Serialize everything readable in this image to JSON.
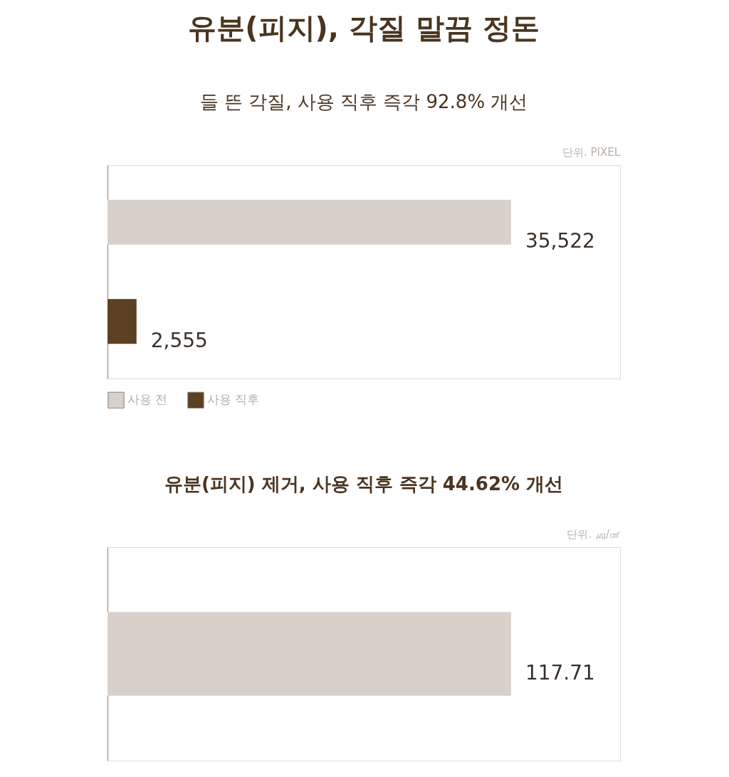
{
  "chart_data": [
    {
      "type": "bar",
      "orientation": "horizontal",
      "stacked": true,
      "title": "유분(피지), 각질 말끔 정돈",
      "subtitle": "들 뜬 각질, 사용 직후 즉각 92.8% 개선",
      "categories": [
        null,
        null
      ],
      "series": [
        {
          "name": "사용 전",
          "color": "#d9d0ca",
          "values": [
            35522,
            null
          ],
          "value_labels": [
            "35,522",
            null
          ]
        },
        {
          "name": "사용 직후",
          "color": "#5c4023",
          "values": [
            null,
            2555
          ],
          "value_labels": [
            null,
            "2,555"
          ]
        }
      ],
      "annotations": [
        "단위. PIXEL"
      ],
      "legend": "bottom left",
      "tick_labels": false
    },
    {
      "type": "bar",
      "orientation": "horizontal",
      "title": "유분(피지) 제거, 사용 직후 즉각 44.62% 개선",
      "categories": [
        null
      ],
      "series": [
        {
          "color": "#d9d0ca",
          "values": [
            117.71
          ],
          "value_labels": [
            "117.71"
          ]
        }
      ],
      "annotations": [
        "단위. ㎍/㎠"
      ],
      "tick_labels": false
    }
  ]
}
